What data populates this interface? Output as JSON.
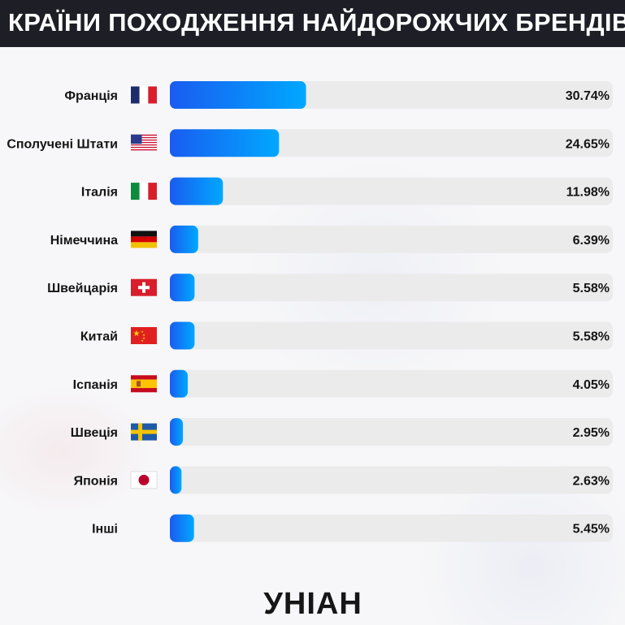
{
  "header": {
    "title": "КРАЇНИ ПОХОДЖЕННЯ НАЙДОРОЖЧИХ БРЕНДІВ"
  },
  "chart_data": {
    "type": "bar",
    "orientation": "horizontal",
    "title": "КРАЇНИ ПОХОДЖЕННЯ НАЙДОРОЖЧИХ БРЕНДІВ",
    "categories": [
      "Франція",
      "Сполучені Штати",
      "Італія",
      "Німеччина",
      "Швейцарія",
      "Китай",
      "Іспанія",
      "Швеція",
      "Японія",
      "Інші"
    ],
    "values": [
      30.74,
      24.65,
      11.98,
      6.39,
      5.58,
      5.58,
      4.05,
      2.95,
      2.63,
      5.45
    ],
    "labels": [
      "30.74%",
      "24.65%",
      "11.98%",
      "6.39%",
      "5.58%",
      "5.58%",
      "4.05%",
      "2.95%",
      "2.63%",
      "5.45%"
    ],
    "flags": [
      "france-flag-icon",
      "usa-flag-icon",
      "italy-flag-icon",
      "germany-flag-icon",
      "switzerland-flag-icon",
      "china-flag-icon",
      "spain-flag-icon",
      "sweden-flag-icon",
      "japan-flag-icon",
      ""
    ],
    "xlim": [
      0,
      100
    ],
    "colors": {
      "bar_start": "#1a5cf0",
      "bar_end": "#00a8ff",
      "track": "#ebebeb"
    }
  },
  "footer": {
    "logo": "УНІАН"
  }
}
